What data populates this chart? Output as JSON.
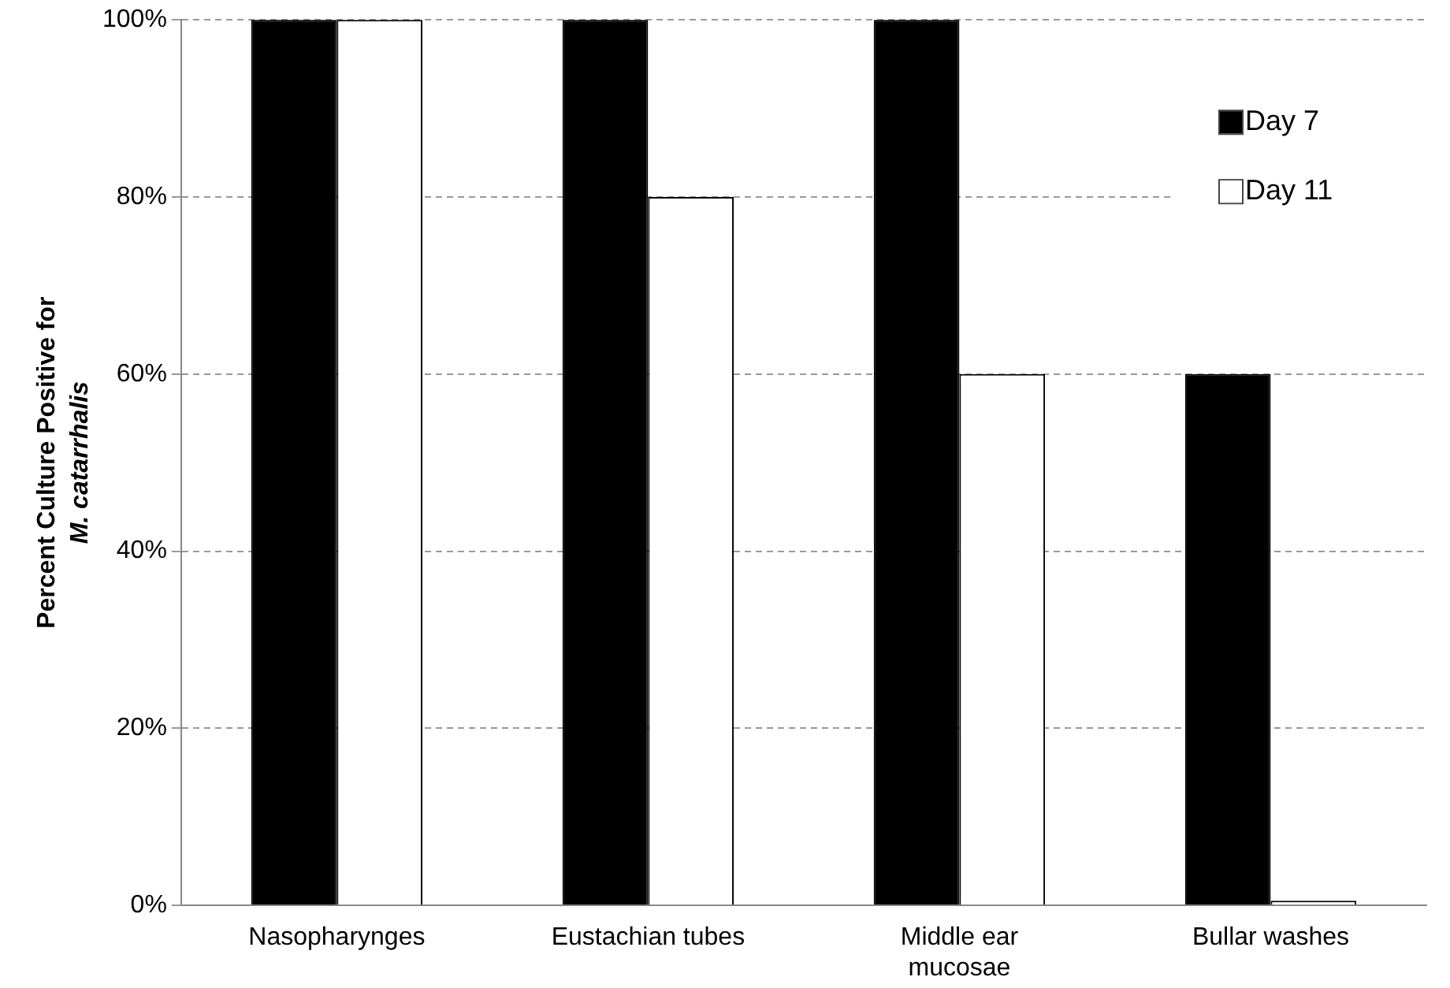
{
  "chart_data": {
    "type": "bar",
    "ylabel": "Percent Culture Positive for M. catarrhalis",
    "categories": [
      "Nasopharynges",
      "Eustachian tubes",
      "Middle ear mucosae",
      "Bullar washes"
    ],
    "series": [
      {
        "name": "Day 7",
        "color": "#000000",
        "values": [
          100,
          100,
          100,
          60
        ]
      },
      {
        "name": "Day 11",
        "color": "#ffffff",
        "values": [
          100,
          80,
          60,
          0
        ]
      }
    ],
    "ylim": [
      0,
      100
    ],
    "yticks": [
      {
        "value": 0,
        "label": "0%"
      },
      {
        "value": 20,
        "label": "20%"
      },
      {
        "value": 40,
        "label": "40%"
      },
      {
        "value": 60,
        "label": "60%"
      },
      {
        "value": 80,
        "label": "80%"
      },
      {
        "value": 100,
        "label": "100%"
      }
    ],
    "grid": "y",
    "legend": "top right"
  }
}
